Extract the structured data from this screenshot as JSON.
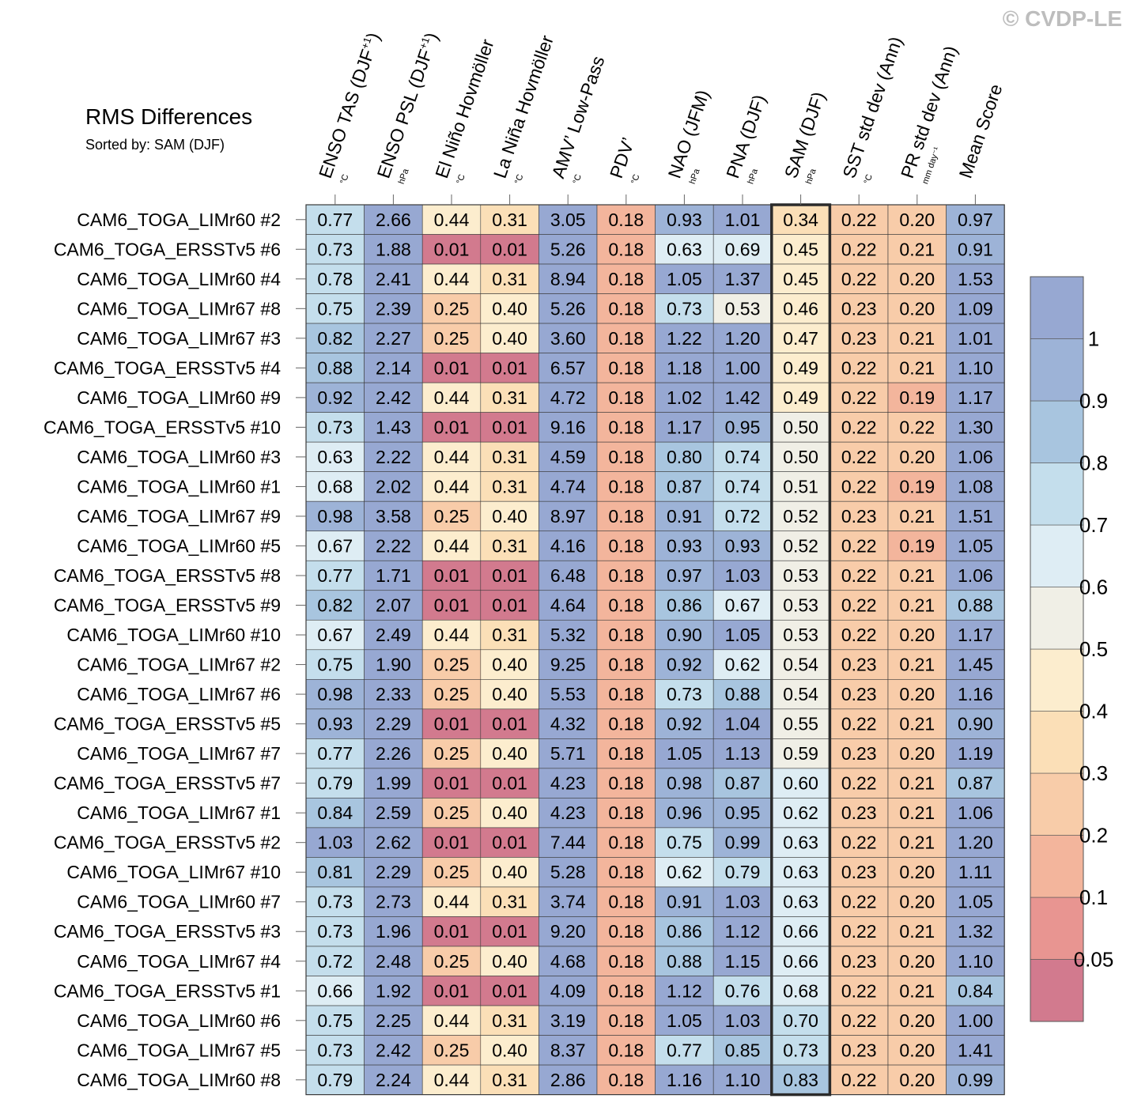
{
  "watermark": "© CVDP-LE",
  "chart_data": {
    "type": "heatmap",
    "title": "RMS Differences",
    "subtitle": "Sorted by: SAM (DJF)",
    "highlight_column": "SAM (DJF)",
    "columns": [
      {
        "label": "ENSO TAS (DJF",
        "sup": "+1",
        "close": ")",
        "unit": "°C"
      },
      {
        "label": "ENSO PSL (DJF",
        "sup": "+1",
        "close": ")",
        "unit": "hPa"
      },
      {
        "label": "El Niño Hovmöller",
        "sup": "",
        "close": "",
        "unit": "°C"
      },
      {
        "label": "La Niña Hovmöller",
        "sup": "",
        "close": "",
        "unit": "°C"
      },
      {
        "label": "AMV’ Low-Pass",
        "sup": "",
        "close": "",
        "unit": "°C"
      },
      {
        "label": "PDV’",
        "sup": "",
        "close": "",
        "unit": "°C"
      },
      {
        "label": "NAO (JFM)",
        "sup": "",
        "close": "",
        "unit": "hPa"
      },
      {
        "label": "PNA (DJF)",
        "sup": "",
        "close": "",
        "unit": "hPa"
      },
      {
        "label": "SAM (DJF)",
        "sup": "",
        "close": "",
        "unit": "hPa"
      },
      {
        "label": "SST std dev (Ann)",
        "sup": "",
        "close": "",
        "unit": "°C"
      },
      {
        "label": "PR std dev (Ann)",
        "sup": "",
        "close": "",
        "unit": "mm day⁻¹"
      },
      {
        "label": "Mean Score",
        "sup": "",
        "close": "",
        "unit": ""
      }
    ],
    "rows": [
      {
        "name": "CAM6_TOGA_LIMr60 #2",
        "values": [
          "0.77",
          "2.66",
          "0.44",
          "0.31",
          "3.05",
          "0.18",
          "0.93",
          "1.01",
          "0.34",
          "0.22",
          "0.20",
          "0.97"
        ]
      },
      {
        "name": "CAM6_TOGA_ERSSTv5 #6",
        "values": [
          "0.73",
          "1.88",
          "0.01",
          "0.01",
          "5.26",
          "0.18",
          "0.63",
          "0.69",
          "0.45",
          "0.22",
          "0.21",
          "0.91"
        ]
      },
      {
        "name": "CAM6_TOGA_LIMr60 #4",
        "values": [
          "0.78",
          "2.41",
          "0.44",
          "0.31",
          "8.94",
          "0.18",
          "1.05",
          "1.37",
          "0.45",
          "0.22",
          "0.20",
          "1.53"
        ]
      },
      {
        "name": "CAM6_TOGA_LIMr67 #8",
        "values": [
          "0.75",
          "2.39",
          "0.25",
          "0.40",
          "5.26",
          "0.18",
          "0.73",
          "0.53",
          "0.46",
          "0.23",
          "0.20",
          "1.09"
        ]
      },
      {
        "name": "CAM6_TOGA_LIMr67 #3",
        "values": [
          "0.82",
          "2.27",
          "0.25",
          "0.40",
          "3.60",
          "0.18",
          "1.22",
          "1.20",
          "0.47",
          "0.23",
          "0.21",
          "1.01"
        ]
      },
      {
        "name": "CAM6_TOGA_ERSSTv5 #4",
        "values": [
          "0.88",
          "2.14",
          "0.01",
          "0.01",
          "6.57",
          "0.18",
          "1.18",
          "1.00",
          "0.49",
          "0.22",
          "0.21",
          "1.10"
        ]
      },
      {
        "name": "CAM6_TOGA_LIMr60 #9",
        "values": [
          "0.92",
          "2.42",
          "0.44",
          "0.31",
          "4.72",
          "0.18",
          "1.02",
          "1.42",
          "0.49",
          "0.22",
          "0.19",
          "1.17"
        ]
      },
      {
        "name": "CAM6_TOGA_ERSSTv5 #10",
        "values": [
          "0.73",
          "1.43",
          "0.01",
          "0.01",
          "9.16",
          "0.18",
          "1.17",
          "0.95",
          "0.50",
          "0.22",
          "0.22",
          "1.30"
        ]
      },
      {
        "name": "CAM6_TOGA_LIMr60 #3",
        "values": [
          "0.63",
          "2.22",
          "0.44",
          "0.31",
          "4.59",
          "0.18",
          "0.80",
          "0.74",
          "0.50",
          "0.22",
          "0.20",
          "1.06"
        ]
      },
      {
        "name": "CAM6_TOGA_LIMr60 #1",
        "values": [
          "0.68",
          "2.02",
          "0.44",
          "0.31",
          "4.74",
          "0.18",
          "0.87",
          "0.74",
          "0.51",
          "0.22",
          "0.19",
          "1.08"
        ]
      },
      {
        "name": "CAM6_TOGA_LIMr67 #9",
        "values": [
          "0.98",
          "3.58",
          "0.25",
          "0.40",
          "8.97",
          "0.18",
          "0.91",
          "0.72",
          "0.52",
          "0.23",
          "0.21",
          "1.51"
        ]
      },
      {
        "name": "CAM6_TOGA_LIMr60 #5",
        "values": [
          "0.67",
          "2.22",
          "0.44",
          "0.31",
          "4.16",
          "0.18",
          "0.93",
          "0.93",
          "0.52",
          "0.22",
          "0.19",
          "1.05"
        ]
      },
      {
        "name": "CAM6_TOGA_ERSSTv5 #8",
        "values": [
          "0.77",
          "1.71",
          "0.01",
          "0.01",
          "6.48",
          "0.18",
          "0.97",
          "1.03",
          "0.53",
          "0.22",
          "0.21",
          "1.06"
        ]
      },
      {
        "name": "CAM6_TOGA_ERSSTv5 #9",
        "values": [
          "0.82",
          "2.07",
          "0.01",
          "0.01",
          "4.64",
          "0.18",
          "0.86",
          "0.67",
          "0.53",
          "0.22",
          "0.21",
          "0.88"
        ]
      },
      {
        "name": "CAM6_TOGA_LIMr60 #10",
        "values": [
          "0.67",
          "2.49",
          "0.44",
          "0.31",
          "5.32",
          "0.18",
          "0.90",
          "1.05",
          "0.53",
          "0.22",
          "0.20",
          "1.17"
        ]
      },
      {
        "name": "CAM6_TOGA_LIMr67 #2",
        "values": [
          "0.75",
          "1.90",
          "0.25",
          "0.40",
          "9.25",
          "0.18",
          "0.92",
          "0.62",
          "0.54",
          "0.23",
          "0.21",
          "1.45"
        ]
      },
      {
        "name": "CAM6_TOGA_LIMr67 #6",
        "values": [
          "0.98",
          "2.33",
          "0.25",
          "0.40",
          "5.53",
          "0.18",
          "0.73",
          "0.88",
          "0.54",
          "0.23",
          "0.20",
          "1.16"
        ]
      },
      {
        "name": "CAM6_TOGA_ERSSTv5 #5",
        "values": [
          "0.93",
          "2.29",
          "0.01",
          "0.01",
          "4.32",
          "0.18",
          "0.92",
          "1.04",
          "0.55",
          "0.22",
          "0.21",
          "0.90"
        ]
      },
      {
        "name": "CAM6_TOGA_LIMr67 #7",
        "values": [
          "0.77",
          "2.26",
          "0.25",
          "0.40",
          "5.71",
          "0.18",
          "1.05",
          "1.13",
          "0.59",
          "0.23",
          "0.20",
          "1.19"
        ]
      },
      {
        "name": "CAM6_TOGA_ERSSTv5 #7",
        "values": [
          "0.79",
          "1.99",
          "0.01",
          "0.01",
          "4.23",
          "0.18",
          "0.98",
          "0.87",
          "0.60",
          "0.22",
          "0.21",
          "0.87"
        ]
      },
      {
        "name": "CAM6_TOGA_LIMr67 #1",
        "values": [
          "0.84",
          "2.59",
          "0.25",
          "0.40",
          "4.23",
          "0.18",
          "0.96",
          "0.95",
          "0.62",
          "0.23",
          "0.21",
          "1.06"
        ]
      },
      {
        "name": "CAM6_TOGA_ERSSTv5 #2",
        "values": [
          "1.03",
          "2.62",
          "0.01",
          "0.01",
          "7.44",
          "0.18",
          "0.75",
          "0.99",
          "0.63",
          "0.22",
          "0.21",
          "1.20"
        ]
      },
      {
        "name": "CAM6_TOGA_LIMr67 #10",
        "values": [
          "0.81",
          "2.29",
          "0.25",
          "0.40",
          "5.28",
          "0.18",
          "0.62",
          "0.79",
          "0.63",
          "0.23",
          "0.20",
          "1.11"
        ]
      },
      {
        "name": "CAM6_TOGA_LIMr60 #7",
        "values": [
          "0.73",
          "2.73",
          "0.44",
          "0.31",
          "3.74",
          "0.18",
          "0.91",
          "1.03",
          "0.63",
          "0.22",
          "0.20",
          "1.05"
        ]
      },
      {
        "name": "CAM6_TOGA_ERSSTv5 #3",
        "values": [
          "0.73",
          "1.96",
          "0.01",
          "0.01",
          "9.20",
          "0.18",
          "0.86",
          "1.12",
          "0.66",
          "0.22",
          "0.21",
          "1.32"
        ]
      },
      {
        "name": "CAM6_TOGA_LIMr67 #4",
        "values": [
          "0.72",
          "2.48",
          "0.25",
          "0.40",
          "4.68",
          "0.18",
          "0.88",
          "1.15",
          "0.66",
          "0.23",
          "0.20",
          "1.10"
        ]
      },
      {
        "name": "CAM6_TOGA_ERSSTv5 #1",
        "values": [
          "0.66",
          "1.92",
          "0.01",
          "0.01",
          "4.09",
          "0.18",
          "1.12",
          "0.76",
          "0.68",
          "0.22",
          "0.21",
          "0.84"
        ]
      },
      {
        "name": "CAM6_TOGA_LIMr60 #6",
        "values": [
          "0.75",
          "2.25",
          "0.44",
          "0.31",
          "3.19",
          "0.18",
          "1.05",
          "1.03",
          "0.70",
          "0.22",
          "0.20",
          "1.00"
        ]
      },
      {
        "name": "CAM6_TOGA_LIMr67 #5",
        "values": [
          "0.73",
          "2.42",
          "0.25",
          "0.40",
          "8.37",
          "0.18",
          "0.77",
          "0.85",
          "0.73",
          "0.23",
          "0.20",
          "1.41"
        ]
      },
      {
        "name": "CAM6_TOGA_LIMr60 #8",
        "values": [
          "0.79",
          "2.24",
          "0.44",
          "0.31",
          "2.86",
          "0.18",
          "1.16",
          "1.10",
          "0.83",
          "0.22",
          "0.20",
          "0.99"
        ]
      }
    ],
    "colorbar": {
      "boundaries": [
        0.05,
        0.1,
        0.2,
        0.3,
        0.4,
        0.5,
        0.6,
        0.7,
        0.8,
        0.9,
        1
      ],
      "labels": [
        "0.05",
        "0.1",
        "0.2",
        "0.3",
        "0.4",
        "0.5",
        "0.6",
        "0.7",
        "0.8",
        "0.9",
        "1"
      ],
      "colors": [
        "#d27a8e",
        "#e89591",
        "#f3b59c",
        "#f8cca9",
        "#fbdfb7",
        "#fcedce",
        "#f0efe6",
        "#deedf4",
        "#c4deec",
        "#a8c5df",
        "#9db3d7",
        "#97a8d2"
      ]
    }
  }
}
